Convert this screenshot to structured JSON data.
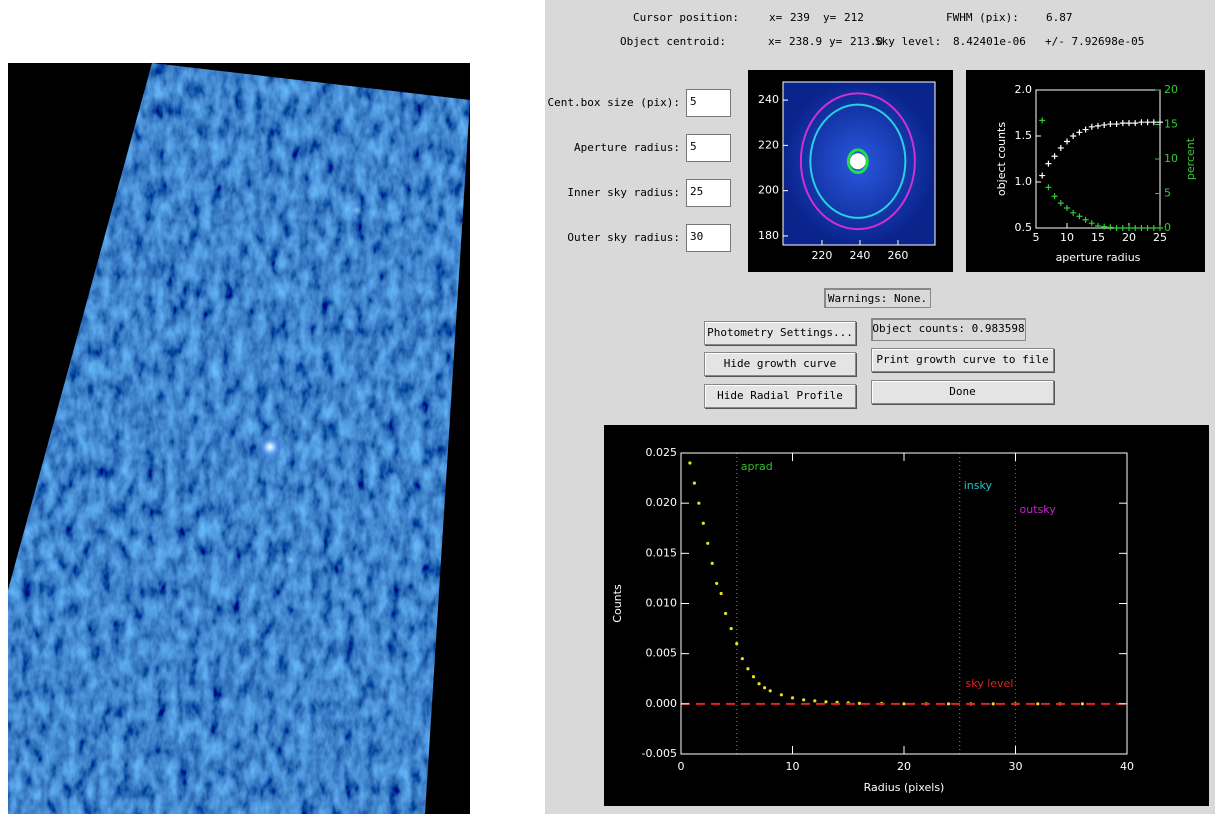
{
  "header": {
    "cursor_label": "Cursor position:",
    "cursor_x_label": "x=",
    "cursor_x": "239",
    "cursor_y_label": "y=",
    "cursor_y": "212",
    "fwhm_label": "FWHM (pix):",
    "fwhm_value": "6.87",
    "centroid_label": "Object centroid:",
    "centroid_x_label": "x=",
    "centroid_x": "238.9",
    "centroid_y_label": "y=",
    "centroid_y": "213.0",
    "sky_label": "Sky level:",
    "sky_value": "8.42401e-06",
    "sky_error": "+/- 7.92698e-05"
  },
  "fields": [
    {
      "label": "Cent.box size (pix):",
      "value": "5"
    },
    {
      "label": "Aperture radius:",
      "value": "5"
    },
    {
      "label": "Inner sky radius:",
      "value": "25"
    },
    {
      "label": "Outer sky radius:",
      "value": "30"
    }
  ],
  "image_panel": {
    "xlim": [
      199.5,
      279.5
    ],
    "ylim": [
      176,
      248
    ],
    "xticks": [
      220,
      240,
      260
    ],
    "yticks": [
      180,
      200,
      220,
      240
    ]
  },
  "growth_curve": {
    "xlim": [
      5,
      25
    ],
    "ylim": [
      0.5,
      2.0
    ],
    "y2lim": [
      0,
      20
    ],
    "xticks": [
      5,
      10,
      15,
      20,
      25
    ],
    "yticks": [
      {
        "value": 0.5,
        "label": "0.5"
      },
      {
        "value": 1,
        "label": "1.0"
      },
      {
        "value": 1.5,
        "label": "1.5"
      },
      {
        "value": 2,
        "label": "2.0"
      }
    ],
    "y2ticks": [
      0,
      5,
      10,
      15,
      20
    ],
    "xlabel": "aperture radius",
    "ylabel": "object counts",
    "y2label": "percent",
    "x": [
      6,
      7,
      8,
      9,
      10,
      11,
      12,
      13,
      14,
      15,
      16,
      17,
      18,
      19,
      20,
      21,
      22,
      23,
      24,
      25
    ],
    "counts": [
      1.07,
      1.2,
      1.28,
      1.37,
      1.44,
      1.5,
      1.54,
      1.57,
      1.6,
      1.61,
      1.62,
      1.63,
      1.63,
      1.64,
      1.64,
      1.64,
      1.65,
      1.65,
      1.65,
      1.65
    ],
    "percent": [
      15.6,
      5.9,
      4.6,
      3.6,
      2.9,
      2.2,
      1.7,
      1.2,
      0.7,
      0.3,
      0.2,
      0.1,
      0,
      0,
      0,
      0,
      0,
      0,
      0,
      0
    ]
  },
  "warnings": "Warnings: None.",
  "buttons": {
    "photometry_settings": "Photometry Settings...",
    "object_counts": "Object counts: 0.983598",
    "hide_growth": "Hide growth curve",
    "print_growth": "Print growth curve to file",
    "hide_profile": "Hide Radial Profile",
    "done": "Done"
  },
  "radial_profile": {
    "xlim": [
      0,
      40
    ],
    "ylim": [
      -0.005,
      0.025
    ],
    "xticks": [
      0,
      10,
      20,
      30,
      40
    ],
    "yticks": [
      -0.005,
      {
        "value": 0,
        "label": "0.000"
      },
      0.005,
      {
        "value": 0.01,
        "label": "0.010"
      },
      0.015,
      {
        "value": 0.02,
        "label": "0.020"
      },
      0.025
    ],
    "xlabel": "Radius (pixels)",
    "ylabel": "Counts",
    "markers": [
      {
        "label": "aprad",
        "x": 5,
        "color": "#2cc02c"
      },
      {
        "label": "insky",
        "x": 25,
        "color": "#28c4c4"
      },
      {
        "label": "outsky",
        "x": 30,
        "color": "#c828c8"
      }
    ],
    "sky": {
      "label": "sky level",
      "y": 0,
      "color": "#e02424"
    },
    "points": {
      "color": "#e8e020",
      "x": [
        0.8,
        1.2,
        1.6,
        2,
        2.4,
        2.8,
        3.2,
        3.6,
        4,
        4.5,
        5,
        5.5,
        6,
        6.5,
        7,
        7.5,
        8,
        9,
        10,
        11,
        12,
        13,
        14,
        15,
        16,
        18,
        20,
        22,
        24,
        26,
        28,
        30,
        32,
        34,
        36
      ],
      "y": [
        0.024,
        0.022,
        0.02,
        0.018,
        0.016,
        0.014,
        0.012,
        0.011,
        0.009,
        0.0075,
        0.006,
        0.0045,
        0.0035,
        0.0027,
        0.002,
        0.0016,
        0.0013,
        0.0009,
        0.0006,
        0.0004,
        0.0003,
        0.0002,
        0.00015,
        0.0001,
        5e-05,
        3e-05,
        0,
        0,
        0,
        0,
        0,
        0,
        0,
        0,
        0
      ]
    }
  }
}
